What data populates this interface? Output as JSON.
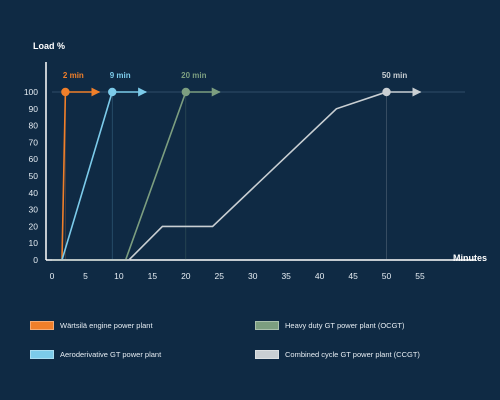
{
  "chart_data": {
    "type": "line",
    "ylabel": "Load %",
    "xlabel": "Minutes",
    "xlim": [
      0,
      55
    ],
    "ylim": [
      0,
      100
    ],
    "x_ticks": [
      0,
      5,
      10,
      15,
      20,
      25,
      30,
      35,
      40,
      45,
      50,
      55
    ],
    "y_ticks": [
      0,
      10,
      20,
      30,
      40,
      50,
      60,
      70,
      80,
      90,
      100
    ],
    "series": [
      {
        "name": "Wärtsilä engine power plant",
        "color": "#f07f2a",
        "points": [
          [
            0,
            0
          ],
          [
            1.5,
            0
          ],
          [
            2,
            100
          ]
        ],
        "marker_x": 2,
        "annotation": "2 min"
      },
      {
        "name": "Aeroderivative GT power plant",
        "color": "#7ccbea",
        "points": [
          [
            0,
            0
          ],
          [
            1.5,
            0
          ],
          [
            9,
            100
          ]
        ],
        "marker_x": 9,
        "annotation": "9 min"
      },
      {
        "name": "Heavy duty GT power plant (OCGT)",
        "color": "#7c9e80",
        "points": [
          [
            0,
            0
          ],
          [
            11,
            0
          ],
          [
            20,
            100
          ]
        ],
        "marker_x": 20,
        "annotation": "20 min"
      },
      {
        "name": "Combined cycle GT power plant (CCGT)",
        "color": "#c9cfd3",
        "points": [
          [
            0,
            0
          ],
          [
            11.5,
            0
          ],
          [
            16.5,
            20
          ],
          [
            24,
            20
          ],
          [
            42.5,
            90
          ],
          [
            50,
            100
          ]
        ],
        "marker_x": 50,
        "annotation": "50 min"
      }
    ]
  },
  "legend": [
    {
      "label": "Wärtsilä engine power plant",
      "color": "#f07f2a"
    },
    {
      "label": "Heavy duty GT power plant (OCGT)",
      "color": "#7c9e80"
    },
    {
      "label": "Aeroderivative GT power plant",
      "color": "#7ccbea"
    },
    {
      "label": "Combined cycle GT power plant (CCGT)",
      "color": "#c9cfd3"
    }
  ]
}
